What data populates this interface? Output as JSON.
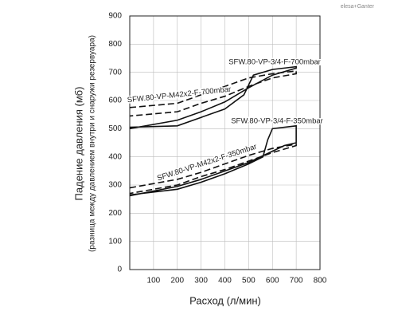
{
  "brand": "elesa+Ganter",
  "chart_data": {
    "type": "line",
    "x_label": "Расход (л/мин)",
    "y_label": "Падение давления (мб)",
    "y_label_sub": "(разница между давлением внутри и снаружи резервуара)",
    "xlim": [
      0,
      800
    ],
    "ylim": [
      0,
      900
    ],
    "xticks": [
      100,
      200,
      300,
      400,
      500,
      600,
      700,
      800
    ],
    "yticks": [
      0,
      100,
      200,
      300,
      400,
      500,
      600,
      700,
      800,
      900
    ],
    "grid": true,
    "series": [
      {
        "name": "SFW.80-VP-3/4-F-700mbar",
        "color": "#111111",
        "dash": false,
        "x": [
          0,
          200,
          300,
          400,
          480,
          520,
          600,
          700,
          700,
          600,
          500,
          400,
          300,
          200,
          0
        ],
        "values": [
          505,
          510,
          540,
          570,
          620,
          690,
          710,
          720,
          715,
          690,
          645,
          595,
          560,
          530,
          500
        ]
      },
      {
        "name": "SFW.80-VP-M42x2-F-700mbar",
        "color": "#111111",
        "dash": true,
        "x": [
          0,
          200,
          300,
          400,
          500,
          600,
          700,
          700,
          600,
          500,
          400,
          300,
          200,
          0
        ],
        "values": [
          575,
          590,
          620,
          650,
          680,
          695,
          705,
          695,
          680,
          650,
          615,
          590,
          560,
          545
        ]
      },
      {
        "name": "SFW.80-VP-3/4-F-350mbar",
        "color": "#111111",
        "dash": false,
        "x": [
          0,
          200,
          300,
          400,
          500,
          560,
          580,
          600,
          700,
          700,
          650,
          600,
          500,
          400,
          300,
          200,
          0
        ],
        "values": [
          265,
          285,
          310,
          340,
          375,
          400,
          460,
          500,
          510,
          450,
          440,
          420,
          380,
          350,
          320,
          295,
          262
        ]
      },
      {
        "name": "SFW.80-VP-M42x2-F-350mbar",
        "color": "#111111",
        "dash": true,
        "x": [
          0,
          200,
          300,
          400,
          500,
          600,
          700,
          700,
          600,
          500,
          400,
          300,
          200,
          0
        ],
        "values": [
          290,
          320,
          345,
          375,
          405,
          430,
          445,
          440,
          415,
          385,
          355,
          330,
          300,
          270
        ]
      }
    ]
  }
}
